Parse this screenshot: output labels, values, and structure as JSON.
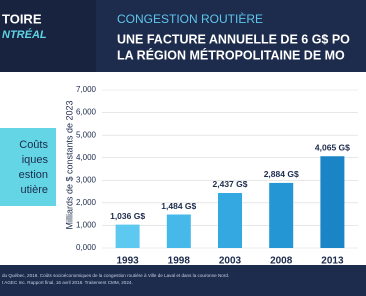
{
  "header": {
    "logo_line1": "TOIRE",
    "logo_line2": "NTRÉAL",
    "kicker": "CONGESTION ROUTIÈRE",
    "title_line1": "UNE FACTURE ANNUELLE DE 6 G$ PO",
    "title_line2": "LA RÉGION MÉTROPOLITAINE DE MO"
  },
  "side_box": {
    "lines": [
      "Coûts",
      "iques",
      "estion",
      "utière"
    ]
  },
  "chart_data": {
    "type": "bar",
    "y_label": "Milliards de $ constants de 2023",
    "categories": [
      "1993",
      "1998",
      "2003",
      "2008",
      "2013"
    ],
    "values": [
      1.036,
      1.484,
      2.437,
      2.884,
      4.065
    ],
    "value_labels": [
      "1,036 G$",
      "1,484 G$",
      "2,437 G$",
      "2,884 G$",
      "4,065 G$"
    ],
    "colors": [
      "#5ec9f0",
      "#46b9ea",
      "#34a8e0",
      "#2596d4",
      "#1a84c6"
    ],
    "ylim": [
      0,
      7
    ],
    "yticks": [
      {
        "value": 0,
        "label": "0,000"
      },
      {
        "value": 1,
        "label": "1,000"
      },
      {
        "value": 2,
        "label": "2,000"
      },
      {
        "value": 3,
        "label": "3,000"
      },
      {
        "value": 4,
        "label": "4,000"
      },
      {
        "value": 5,
        "label": "5,000"
      },
      {
        "value": 6,
        "label": "6,000"
      },
      {
        "value": 7,
        "label": "7,000"
      }
    ],
    "grid": true
  },
  "footer": {
    "line1": "du Québec, 2018. Coûts socioéconomiques de la congestion routière à Ville de Laval et dans la couronne Nord.",
    "line2": "t AGEC Inc. Rapport final, 16 avril 2018. Traitement CMM, 2024."
  }
}
